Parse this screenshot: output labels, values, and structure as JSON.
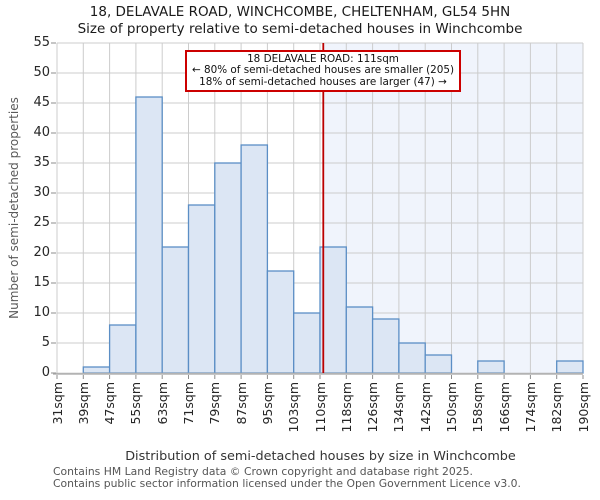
{
  "title": {
    "line1": "18, DELAVALE ROAD, WINCHCOMBE, CHELTENHAM, GL54 5HN",
    "line2": "Size of property relative to semi-detached houses in Winchcombe"
  },
  "chart_data": {
    "type": "bar",
    "title": "18, DELAVALE ROAD, WINCHCOMBE, CHELTENHAM, GL54 5HN — Size of property relative to semi-detached houses in Winchcombe",
    "xlabel": "Distribution of semi-detached houses by size in Winchcombe",
    "ylabel": "Number of semi-detached properties",
    "bin_edges_sqm": [
      31,
      39,
      47,
      55,
      63,
      71,
      79,
      87,
      95,
      103,
      110,
      118,
      126,
      134,
      142,
      150,
      158,
      166,
      174,
      182,
      190
    ],
    "x_tick_labels": [
      "31sqm",
      "39sqm",
      "47sqm",
      "55sqm",
      "63sqm",
      "71sqm",
      "79sqm",
      "87sqm",
      "95sqm",
      "103sqm",
      "110sqm",
      "118sqm",
      "126sqm",
      "134sqm",
      "142sqm",
      "150sqm",
      "158sqm",
      "166sqm",
      "174sqm",
      "182sqm",
      "190sqm"
    ],
    "values": [
      0,
      1,
      8,
      46,
      21,
      28,
      35,
      38,
      17,
      10,
      21,
      11,
      9,
      5,
      3,
      0,
      2,
      0,
      0,
      2
    ],
    "ylim": [
      0,
      55
    ],
    "y_tick_step": 5,
    "grid": true,
    "legend": "none",
    "marker_value_sqm": 111,
    "annotation": {
      "lines": [
        "18 DELAVALE ROAD: 111sqm",
        "← 80% of semi-detached houses are smaller (205)",
        "18% of semi-detached houses are larger (47) →"
      ]
    },
    "colors": {
      "bar_fill": "#dce6f4",
      "bar_stroke": "#5b8ec5",
      "grid": "#cccccc",
      "axis_line": "#b3b3b3",
      "marker_line": "#bb0000",
      "annotation_border": "#cc0000",
      "shaded_region": "#f0f4fc"
    }
  },
  "footer": {
    "lines": [
      "Contains HM Land Registry data © Crown copyright and database right 2025.",
      "Contains public sector information licensed under the Open Government Licence v3.0."
    ]
  }
}
